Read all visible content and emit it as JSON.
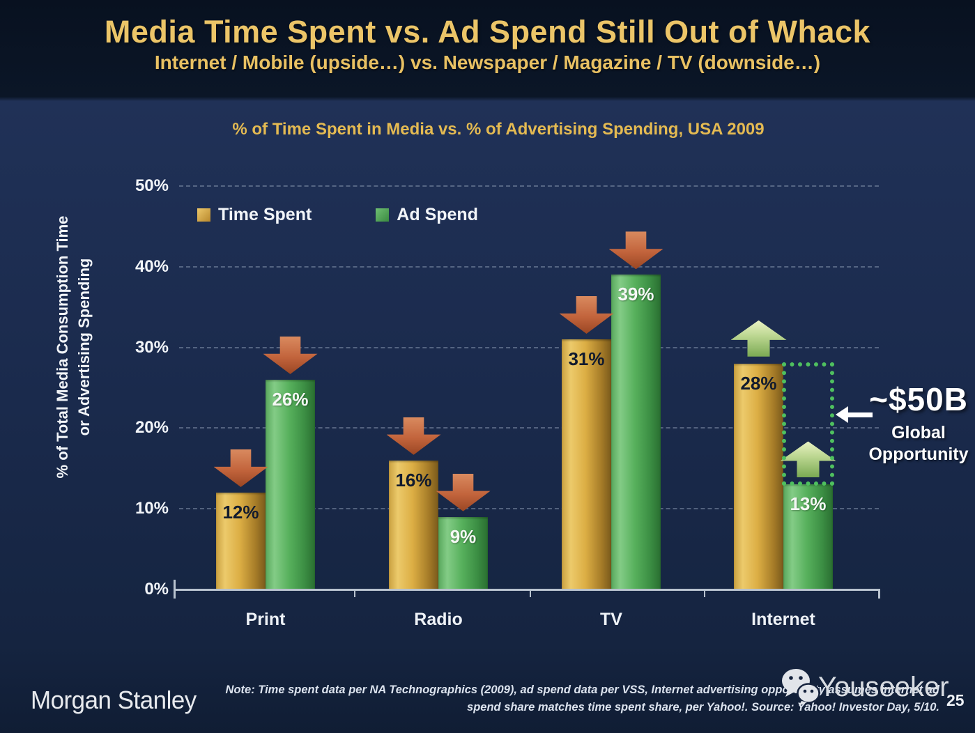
{
  "slide": {
    "title": "Media Time Spent vs. Ad Spend Still Out of Whack",
    "subtitle": "Internet / Mobile (upside…) vs. Newspaper / Magazine / TV (downside…)"
  },
  "chart": {
    "title": "% of Time Spent in Media vs. % of Advertising Spending, USA 2009",
    "y_axis_title_line1": "% of Total Media Consumption Time",
    "y_axis_title_line2": "or Advertising Spending",
    "legend": {
      "time_spent_label": "Time Spent",
      "ad_spend_label": "Ad Spend"
    }
  },
  "chart_data": {
    "type": "bar",
    "title": "% of Time Spent in Media vs. % of Advertising Spending, USA 2009",
    "categories": [
      "Print",
      "Radio",
      "TV",
      "Internet"
    ],
    "series": [
      {
        "name": "Time Spent",
        "color": "#d9a93e",
        "values": [
          12,
          16,
          31,
          28
        ]
      },
      {
        "name": "Ad Spend",
        "color": "#4ea754",
        "values": [
          26,
          9,
          39,
          13
        ]
      }
    ],
    "value_suffix": "%",
    "xlabel": "",
    "ylabel": "% of Total Media Consumption Time or Advertising Spending",
    "ylim": [
      0,
      50
    ],
    "y_ticks": [
      "0%",
      "10%",
      "20%",
      "30%",
      "40%",
      "50%"
    ],
    "grid": "horizontal-dashed",
    "legend_position": "top-left",
    "bar_trend_arrows": [
      [
        "down",
        "down"
      ],
      [
        "down",
        "down"
      ],
      [
        "down",
        "down"
      ],
      [
        "up",
        "up"
      ]
    ],
    "annotation": {
      "headline": "~$50B",
      "line1": "Global",
      "line2": "Opportunity",
      "marks_gap_between": "Internet Time Spent (28%) and Internet Ad Spend (13%)"
    }
  },
  "footer": {
    "logo_text": "Morgan Stanley",
    "note_line1": "Note: Time spent data per NA Technographics (2009), ad spend data per VSS, Internet advertising opportunity assumes internet ad",
    "note_line2": "spend share matches time spent share, per Yahoo!. Source: Yahoo! Investor Day, 5/10.",
    "watermark_text": "Youseeker",
    "page_number": "25"
  },
  "colors": {
    "accent_gold": "#ecc568",
    "bar_gold": "#d9a93e",
    "bar_green": "#4ea754",
    "arrow_down_red": "#c2643c",
    "arrow_up_green": "#b9d58e",
    "opportunity_green": "#4fc05f",
    "background_navy": "#1a2a4c",
    "header_navy": "#0b1627"
  }
}
